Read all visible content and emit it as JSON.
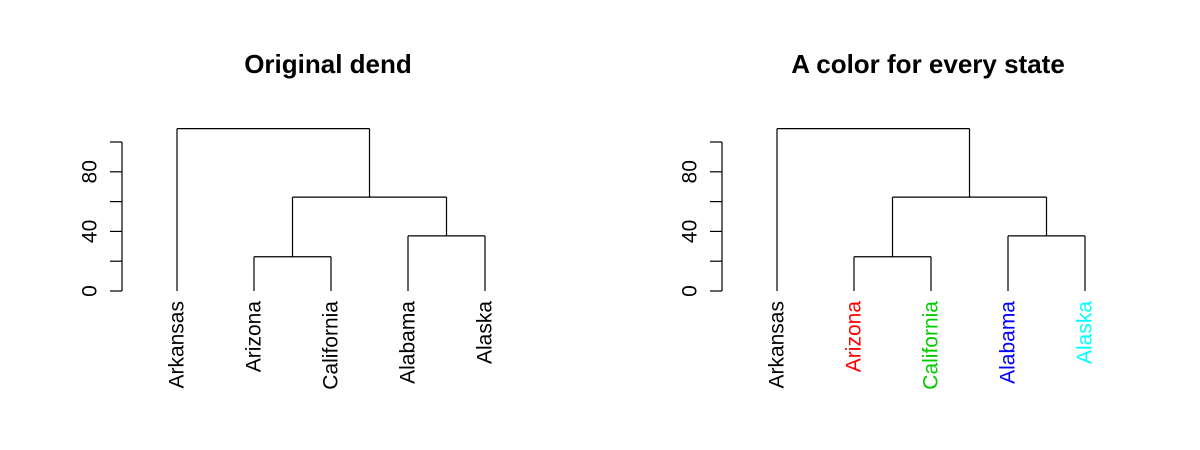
{
  "chart_data": [
    {
      "type": "dendrogram",
      "title": "Original dend",
      "ylim": [
        0,
        100
      ],
      "yticks": [
        0,
        40,
        80
      ],
      "leaves": [
        "Arkansas",
        "Arizona",
        "California",
        "Alabama",
        "Alaska"
      ],
      "leaf_colors": [
        "#000000",
        "#000000",
        "#000000",
        "#000000",
        "#000000"
      ],
      "merges": [
        {
          "left": 2,
          "right": 3,
          "height": 23
        },
        {
          "left": 4,
          "right": 5,
          "height": 37
        },
        {
          "left": "A",
          "right": "B",
          "height": 63
        },
        {
          "left": 1,
          "right": "C",
          "height": 109
        }
      ]
    },
    {
      "type": "dendrogram",
      "title": "A color for every state",
      "ylim": [
        0,
        100
      ],
      "yticks": [
        0,
        40,
        80
      ],
      "leaves": [
        "Arkansas",
        "Arizona",
        "California",
        "Alabama",
        "Alaska"
      ],
      "leaf_colors": [
        "#000000",
        "#ff0000",
        "#00cd00",
        "#0000ff",
        "#00ffff"
      ],
      "merges": [
        {
          "left": 2,
          "right": 3,
          "height": 23
        },
        {
          "left": 4,
          "right": 5,
          "height": 37
        },
        {
          "left": "A",
          "right": "B",
          "height": 63
        },
        {
          "left": 1,
          "right": "C",
          "height": 109
        }
      ]
    }
  ]
}
